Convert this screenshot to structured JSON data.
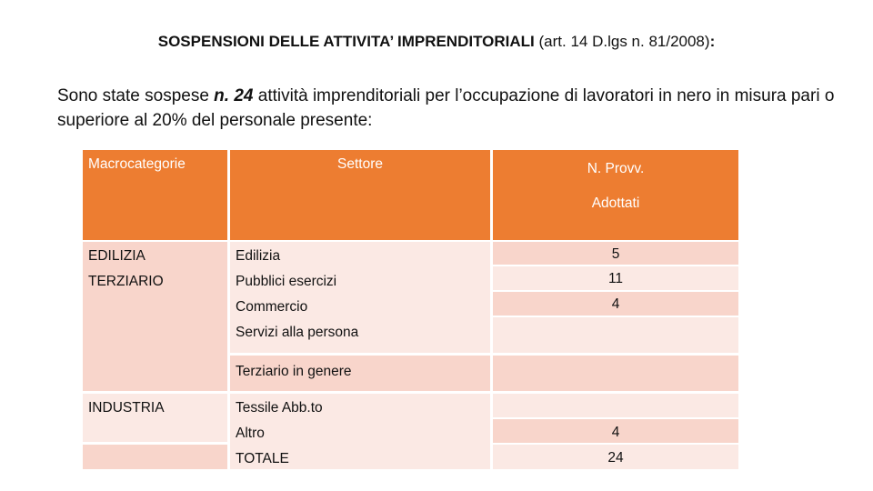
{
  "title": {
    "bold": "SOSPENSIONI DELLE ATTIVITA’ IMPRENDITORIALI",
    "normal": " (art. 14 D.lgs n. 81/2008)",
    "suffix": ":"
  },
  "paragraph": {
    "before": "Sono state sospese ",
    "emphasis": "n. 24",
    "after": " attività imprenditoriali per l’occupazione di lavoratori in nero in misura pari o superiore al 20% del personale presente:"
  },
  "table": {
    "header": [
      "Macrocategorie",
      "Settore",
      "N. Provv.",
      "Adottati"
    ],
    "macrocategorie": [
      "EDILIZIA",
      "TERZIARIO",
      "INDUSTRIA"
    ],
    "settori": [
      "Edilizia",
      "Pubblici esercizi",
      "Commercio",
      "Servizi alla persona",
      "Terziario in genere",
      "Tessile Abb.to",
      "Altro",
      "TOTALE"
    ],
    "provvedimenti": [
      5,
      11,
      4,
      4,
      24
    ]
  }
}
